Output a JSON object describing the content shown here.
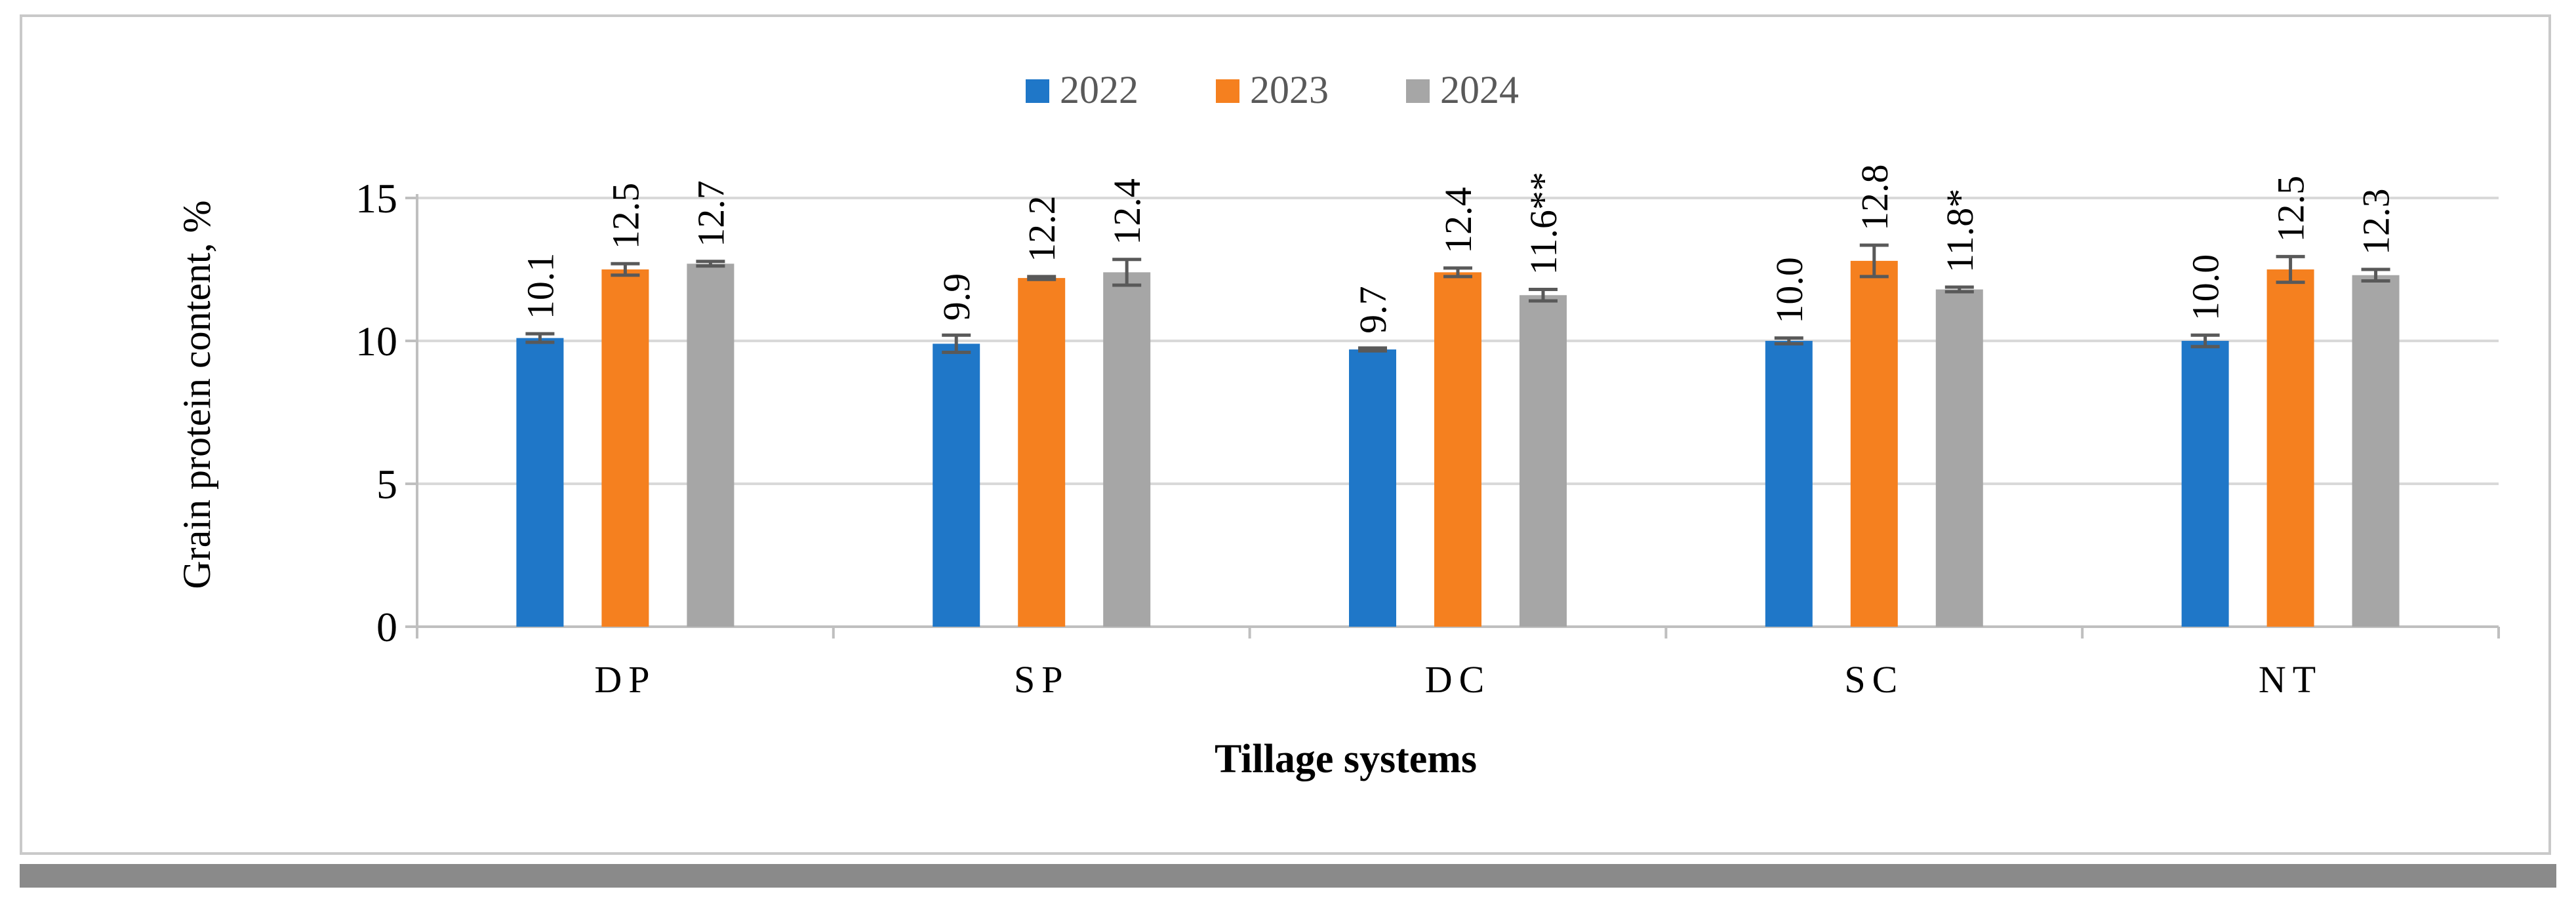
{
  "chart_data": {
    "type": "bar",
    "title": "",
    "xlabel": "Tillage systems",
    "ylabel": "Grain protein content, %",
    "categories": [
      "DP",
      "SP",
      "DC",
      "SC",
      "NT"
    ],
    "ylim": [
      0,
      15
    ],
    "yticks": [
      0,
      5,
      10,
      15
    ],
    "grid": true,
    "legend_position": "top-center",
    "series": [
      {
        "name": "2022",
        "color": "#1f77c8",
        "values": [
          10.1,
          9.9,
          9.7,
          10.0,
          10.0
        ],
        "errors": [
          0.15,
          0.3,
          0.05,
          0.1,
          0.2
        ],
        "labels": [
          "10.1",
          "9.9",
          "9.7",
          "10.0",
          "10.0"
        ]
      },
      {
        "name": "2023",
        "color": "#f5801f",
        "values": [
          12.5,
          12.2,
          12.4,
          12.8,
          12.5
        ],
        "errors": [
          0.2,
          0.05,
          0.15,
          0.55,
          0.45
        ],
        "labels": [
          "12.5",
          "12.2",
          "12.4",
          "12.8",
          "12.5"
        ]
      },
      {
        "name": "2024",
        "color": "#a6a6a6",
        "values": [
          12.7,
          12.4,
          11.6,
          11.8,
          12.3
        ],
        "errors": [
          0.08,
          0.45,
          0.2,
          0.08,
          0.2
        ],
        "labels": [
          "12.7",
          "12.4",
          "11.6**",
          "11.8*",
          "12.3"
        ]
      }
    ]
  }
}
